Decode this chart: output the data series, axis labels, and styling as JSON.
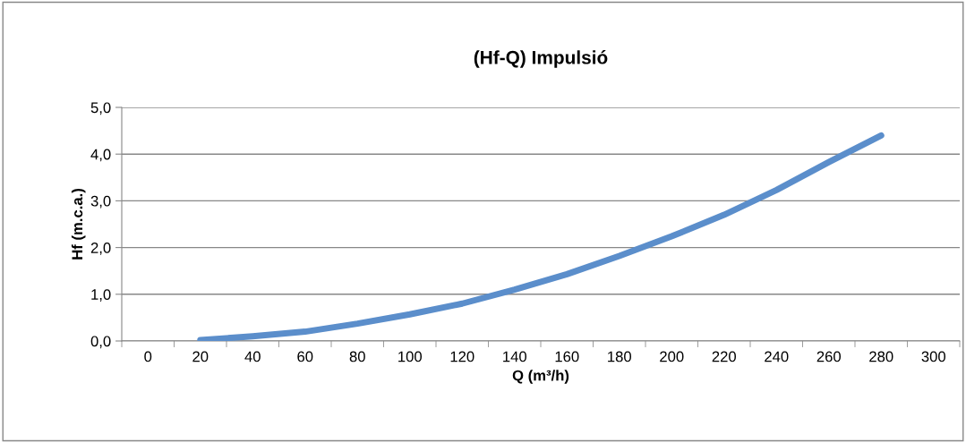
{
  "chart_data": {
    "type": "line",
    "title": "(Hf-Q) Impulsió",
    "xlabel": "Q (m³/h)",
    "ylabel": "Hf (m.c.a.)",
    "categories": [
      "0",
      "20",
      "40",
      "60",
      "80",
      "100",
      "120",
      "140",
      "160",
      "180",
      "200",
      "220",
      "240",
      "260",
      "280",
      "300"
    ],
    "series": [
      {
        "color": "#5b8ecb",
        "values": [
          null,
          0.02,
          0.1,
          0.2,
          0.37,
          0.57,
          0.8,
          1.1,
          1.43,
          1.82,
          2.24,
          2.7,
          3.23,
          3.83,
          4.4,
          null
        ]
      }
    ],
    "ylim": [
      0,
      5
    ],
    "yticks": [
      {
        "value": 0,
        "label": "0,0"
      },
      {
        "value": 1,
        "label": "1,0"
      },
      {
        "value": 2,
        "label": "2,0"
      },
      {
        "value": 3,
        "label": "3,0"
      },
      {
        "value": 4,
        "label": "4,0"
      },
      {
        "value": 5,
        "label": "5,0"
      }
    ],
    "grid": "y",
    "legend": false,
    "marker": "none",
    "line_style": "solid"
  }
}
